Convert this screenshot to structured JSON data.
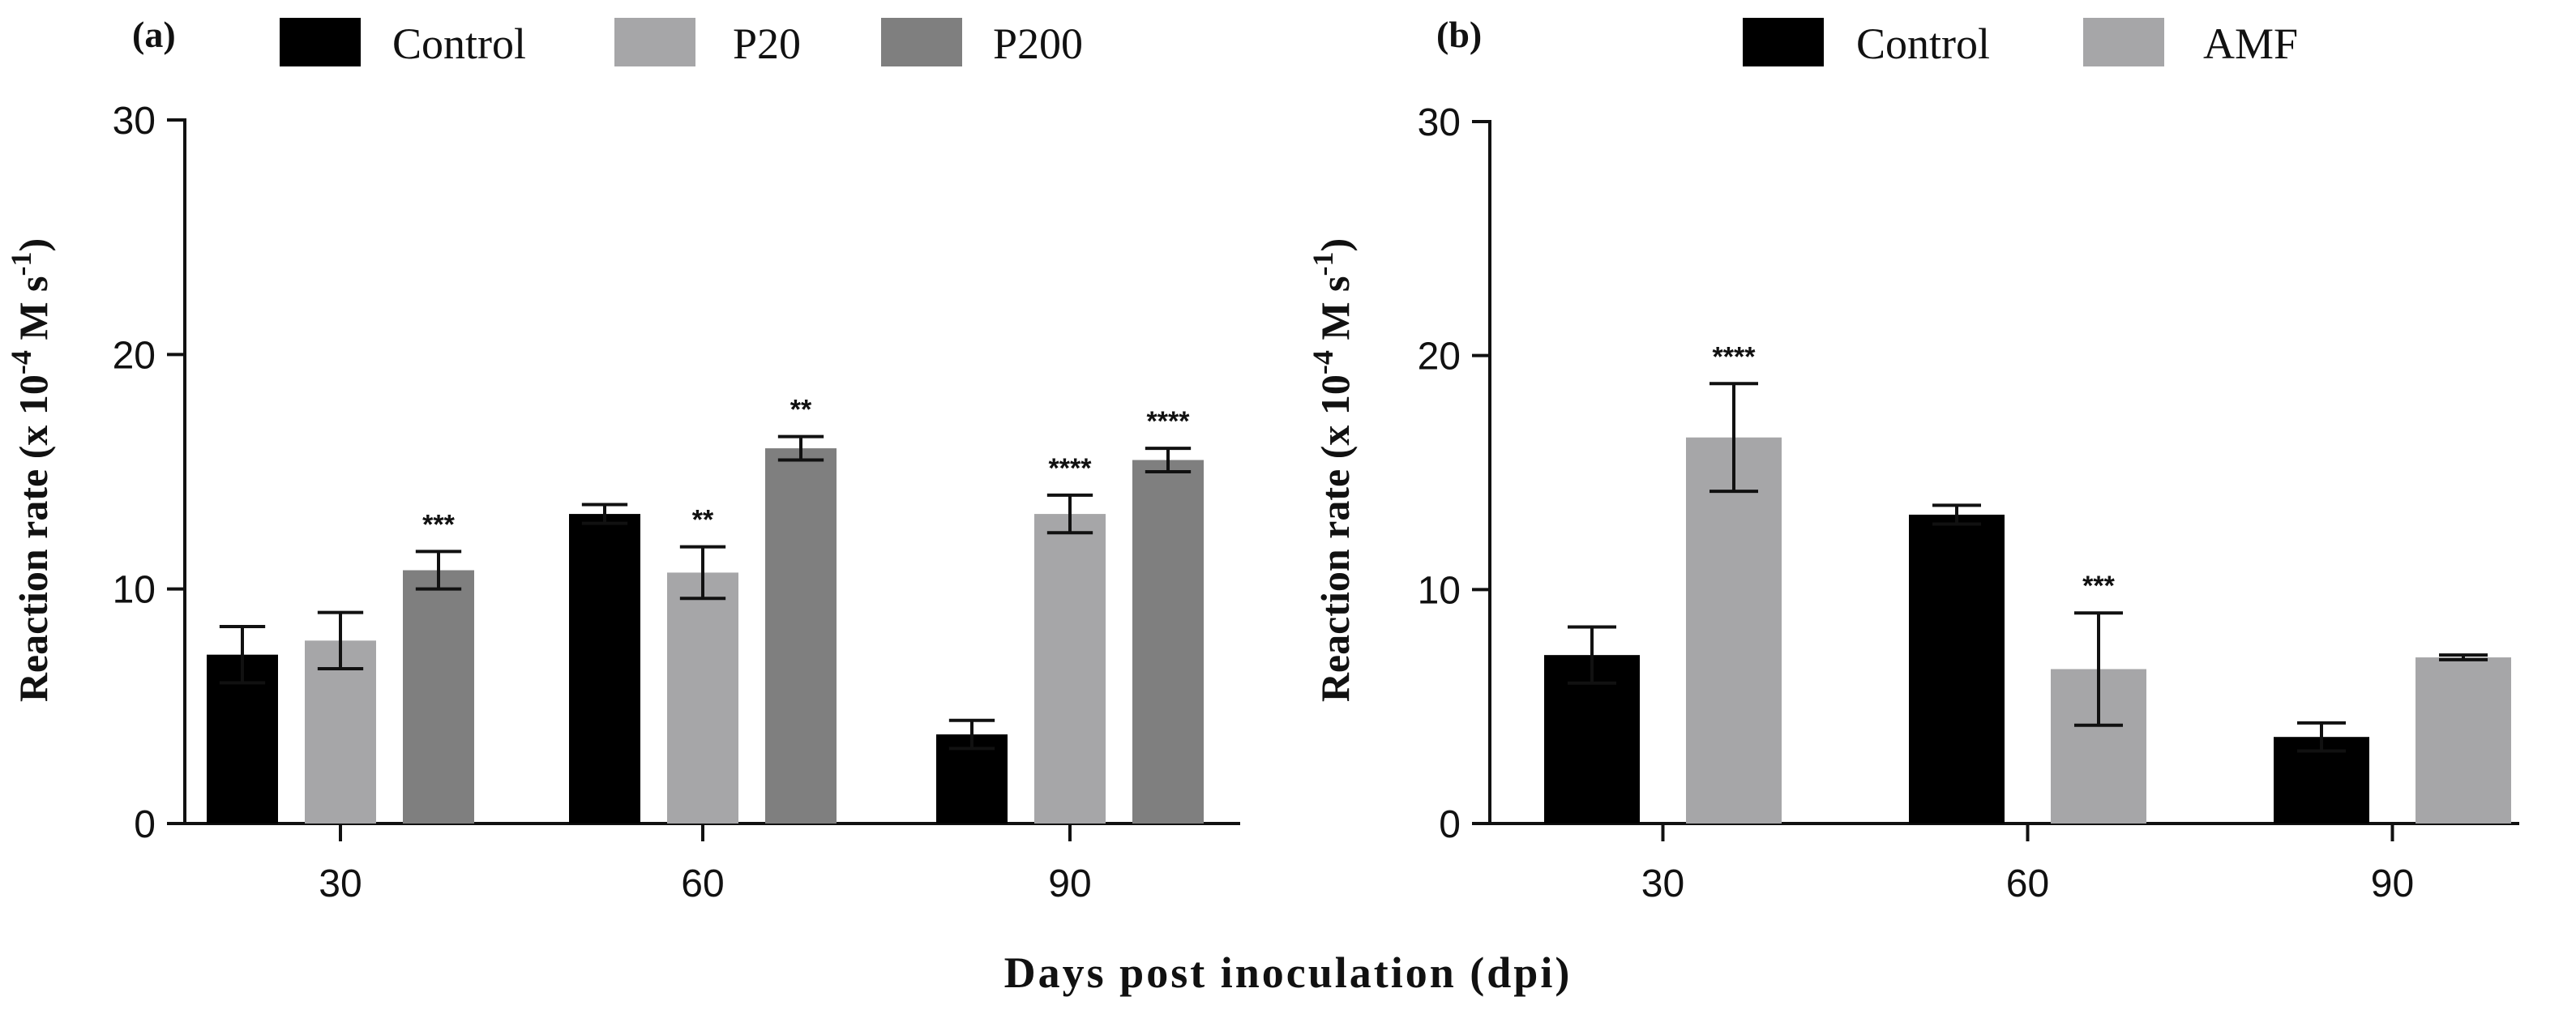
{
  "shared": {
    "xlabel": "Days post inoculation (dpi)"
  },
  "colors": {
    "Control": "#000000",
    "P20": "#a6a6a8",
    "P200": "#7f7f7f",
    "AMF": "#a6a6a8"
  },
  "chart_data": [
    {
      "panel_label": "(a)",
      "type": "bar",
      "categories": [
        "30",
        "60",
        "90"
      ],
      "series": [
        {
          "name": "Control",
          "values": [
            7.2,
            13.2,
            3.8
          ],
          "errors": [
            1.2,
            0.4,
            0.6
          ],
          "sig": [
            "",
            "",
            ""
          ]
        },
        {
          "name": "P20",
          "values": [
            7.8,
            10.7,
            13.2
          ],
          "errors": [
            1.2,
            1.1,
            0.8
          ],
          "sig": [
            "",
            "**",
            "****"
          ]
        },
        {
          "name": "P200",
          "values": [
            10.8,
            16.0,
            15.5
          ],
          "errors": [
            0.8,
            0.5,
            0.5
          ],
          "sig": [
            "***",
            "**",
            "****"
          ]
        }
      ],
      "ylabel": "Reaction rate (x 10 -4 M s -1)",
      "ylabel_base": "Reaction rate (x 10",
      "ylabel_exp1": "-4",
      "ylabel_mid": " M s",
      "ylabel_exp2": "-1",
      "ylabel_end": ")",
      "ylim": [
        0,
        30
      ],
      "yticks": [
        "0",
        "10",
        "20",
        "30"
      ],
      "legend_position": "top"
    },
    {
      "panel_label": "(b)",
      "type": "bar",
      "categories": [
        "30",
        "60",
        "90"
      ],
      "series": [
        {
          "name": "Control",
          "values": [
            7.2,
            13.2,
            3.7
          ],
          "errors": [
            1.2,
            0.4,
            0.6
          ],
          "sig": [
            "",
            "",
            ""
          ]
        },
        {
          "name": "AMF",
          "values": [
            16.5,
            6.6,
            7.1
          ],
          "errors": [
            2.3,
            2.4,
            0.1
          ],
          "sig": [
            "****",
            "***",
            ""
          ]
        }
      ],
      "ylabel": "Reaction rate (x 10 -4 M s -1)",
      "ylabel_base": "Reaction rate (x 10",
      "ylabel_exp1": "-4",
      "ylabel_mid": " M s",
      "ylabel_exp2": "-1",
      "ylabel_end": ")",
      "ylim": [
        0,
        30
      ],
      "yticks": [
        "0",
        "10",
        "20",
        "30"
      ],
      "legend_position": "top"
    }
  ]
}
